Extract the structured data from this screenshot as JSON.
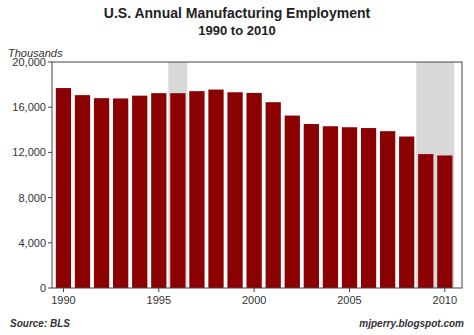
{
  "chart_data": {
    "type": "bar",
    "title": "U.S. Annual Manufacturing Employment",
    "subtitle": "1990 to 2010",
    "y_label": "Thousands",
    "annotations": [
      "Source: BLS",
      "mjperry.blogspot.com"
    ],
    "x": [
      1990,
      1991,
      1992,
      1993,
      1994,
      1995,
      1996,
      1997,
      1998,
      1999,
      2000,
      2001,
      2002,
      2003,
      2004,
      2005,
      2006,
      2007,
      2008,
      2009,
      2010
    ],
    "values": [
      17695,
      17068,
      16799,
      16774,
      17021,
      17241,
      17237,
      17419,
      17560,
      17322,
      17263,
      16441,
      15259,
      14510,
      14315,
      14226,
      14155,
      13879,
      13405,
      11849,
      11727
    ],
    "color": "#8B0000",
    "recession_bands": [
      {
        "start": 1995.5,
        "end": 1996.5,
        "color": "#d8d8d8"
      },
      {
        "start": 2008.5,
        "end": 2010.5,
        "color": "#d8d8d8"
      }
    ],
    "xlim": [
      1989.4,
      2010.9
    ],
    "xticks": [
      1990,
      1995,
      2000,
      2005,
      2010
    ],
    "ylim": [
      0,
      20000
    ],
    "yticks": [
      0,
      {
        "value": 4000,
        "label": "4,000"
      },
      {
        "value": 8000,
        "label": "8,000"
      },
      {
        "value": 12000,
        "label": "12,000"
      },
      {
        "value": 16000,
        "label": "16,000"
      },
      {
        "value": 20000,
        "label": "20,000"
      }
    ],
    "grid": false
  }
}
